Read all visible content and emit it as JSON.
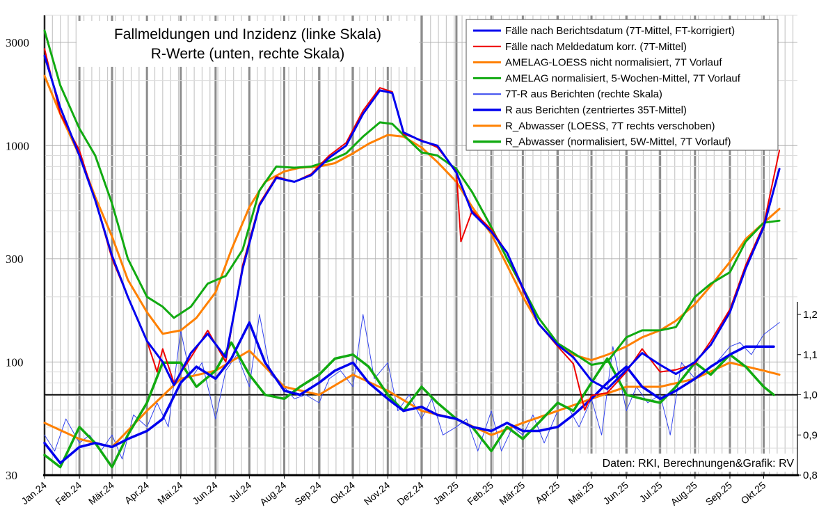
{
  "chart_data": {
    "type": "line",
    "title": [
      "Fallmeldungen und Inzidenz (linke Skala)",
      "R-Werte (unten, rechte Skala)"
    ],
    "credit": "Daten: RKI, Berechnungen&Grafik: RV",
    "x_range": [
      "2024-01-01",
      "2025-10-31"
    ],
    "x_tick_labels": [
      "Jan.24",
      "Feb.24",
      "Mär.24",
      "Apr.24",
      "Mai.24",
      "Jun.24",
      "Jul.24",
      "Aug.24",
      "Sep.24",
      "Okt.24",
      "Nov.24",
      "Dez.24",
      "Jan.25",
      "Feb.25",
      "Mär.25",
      "Apr.25",
      "Mai.25",
      "Jun.25",
      "Jul.25",
      "Aug.25",
      "Sep.25",
      "Okt.25"
    ],
    "x_tick_dates": [
      "2024-01-01",
      "2024-02-01",
      "2024-03-01",
      "2024-04-01",
      "2024-05-01",
      "2024-06-01",
      "2024-07-01",
      "2024-08-01",
      "2024-09-01",
      "2024-10-01",
      "2024-11-01",
      "2024-12-01",
      "2025-01-01",
      "2025-02-01",
      "2025-03-01",
      "2025-04-01",
      "2025-05-01",
      "2025-06-01",
      "2025-07-01",
      "2025-08-01",
      "2025-09-01",
      "2025-10-01"
    ],
    "y_left": {
      "scale": "log",
      "range": [
        30,
        4000
      ],
      "tick_labels": [
        "30",
        "100",
        "300",
        "1000",
        "3000"
      ],
      "tick_values": [
        30,
        100,
        300,
        1000,
        3000
      ]
    },
    "y_right": {
      "scale": "linear",
      "range": [
        0.8,
        1.2
      ],
      "tick_labels": [
        "0,8",
        "0,9",
        "1,0",
        "1,1",
        "1,2"
      ],
      "tick_values": [
        0.8,
        0.9,
        1.0,
        1.1,
        1.2
      ]
    },
    "reference_lines": [
      {
        "axis": "right",
        "value": 1.0,
        "color": "#000000"
      }
    ],
    "grid": true,
    "legend_position": "top-right",
    "series": [
      {
        "name": "Fälle nach Berichtsdatum (7T-Mittel, FT-korrigiert)",
        "axis": "left",
        "color": "#0000ee",
        "width": 3,
        "x": [
          "2024-01-01",
          "2024-01-15",
          "2024-02-01",
          "2024-02-15",
          "2024-03-01",
          "2024-03-15",
          "2024-04-01",
          "2024-04-15",
          "2024-04-25",
          "2024-05-10",
          "2024-05-25",
          "2024-06-10",
          "2024-06-25",
          "2024-07-10",
          "2024-07-25",
          "2024-08-10",
          "2024-08-25",
          "2024-09-10",
          "2024-09-25",
          "2024-10-10",
          "2024-10-25",
          "2024-11-05",
          "2024-11-15",
          "2024-12-01",
          "2024-12-15",
          "2025-01-01",
          "2025-01-15",
          "2025-02-01",
          "2025-02-15",
          "2025-03-01",
          "2025-03-15",
          "2025-04-01",
          "2025-04-15",
          "2025-05-01",
          "2025-05-15",
          "2025-06-01",
          "2025-06-15",
          "2025-07-01",
          "2025-07-15",
          "2025-08-01",
          "2025-08-15",
          "2025-09-01",
          "2025-09-15",
          "2025-10-01",
          "2025-10-15"
        ],
        "values": [
          2600,
          1500,
          900,
          560,
          310,
          200,
          125,
          100,
          78,
          110,
          135,
          105,
          270,
          530,
          710,
          680,
          730,
          880,
          1000,
          1400,
          1800,
          1750,
          1150,
          1050,
          1000,
          750,
          490,
          400,
          320,
          220,
          150,
          120,
          105,
          82,
          75,
          92,
          110,
          97,
          88,
          100,
          120,
          170,
          270,
          420,
          780
        ]
      },
      {
        "name": "Fälle nach Meldedatum korr. (7T-Mittel)",
        "axis": "left",
        "color": "#ee0000",
        "width": 2,
        "x": [
          "2024-01-01",
          "2024-01-15",
          "2024-02-01",
          "2024-02-15",
          "2024-03-01",
          "2024-03-15",
          "2024-04-01",
          "2024-04-10",
          "2024-04-15",
          "2024-04-25",
          "2024-05-10",
          "2024-05-25",
          "2024-06-10",
          "2024-06-25",
          "2024-07-10",
          "2024-07-25",
          "2024-08-10",
          "2024-08-25",
          "2024-09-10",
          "2024-09-25",
          "2024-10-10",
          "2024-10-25",
          "2024-11-05",
          "2024-11-15",
          "2024-12-01",
          "2024-12-15",
          "2025-01-01",
          "2025-01-05",
          "2025-01-15",
          "2025-02-01",
          "2025-02-15",
          "2025-03-01",
          "2025-03-15",
          "2025-04-01",
          "2025-04-15",
          "2025-04-25",
          "2025-05-01",
          "2025-05-15",
          "2025-06-01",
          "2025-06-15",
          "2025-07-01",
          "2025-07-15",
          "2025-08-01",
          "2025-08-15",
          "2025-09-01",
          "2025-09-15",
          "2025-10-01",
          "2025-10-15"
        ],
        "values": [
          2800,
          1400,
          950,
          560,
          300,
          200,
          125,
          90,
          115,
          80,
          105,
          140,
          100,
          280,
          540,
          720,
          680,
          740,
          900,
          1030,
          1450,
          1850,
          1770,
          1130,
          1060,
          980,
          760,
          360,
          500,
          410,
          320,
          215,
          150,
          118,
          98,
          60,
          70,
          72,
          90,
          115,
          90,
          92,
          98,
          125,
          175,
          280,
          430,
          950
        ]
      },
      {
        "name": "AMELAG-LOESS nicht normalisiert, 7T Vorlauf",
        "axis": "left",
        "color": "#ff8000",
        "width": 3,
        "x": [
          "2024-01-01",
          "2024-01-15",
          "2024-02-01",
          "2024-02-15",
          "2024-03-01",
          "2024-03-15",
          "2024-04-01",
          "2024-04-15",
          "2024-05-01",
          "2024-05-15",
          "2024-06-01",
          "2024-06-15",
          "2024-07-01",
          "2024-07-15",
          "2024-08-01",
          "2024-08-15",
          "2024-09-01",
          "2024-09-15",
          "2024-10-01",
          "2024-10-15",
          "2024-11-01",
          "2024-11-15",
          "2024-12-01",
          "2024-12-15",
          "2025-01-01",
          "2025-01-15",
          "2025-02-01",
          "2025-02-15",
          "2025-03-01",
          "2025-03-15",
          "2025-04-01",
          "2025-04-15",
          "2025-05-01",
          "2025-05-15",
          "2025-06-01",
          "2025-06-15",
          "2025-07-01",
          "2025-07-15",
          "2025-08-01",
          "2025-08-15",
          "2025-09-01",
          "2025-09-15",
          "2025-10-01",
          "2025-10-15"
        ],
        "values": [
          2100,
          1400,
          900,
          580,
          380,
          240,
          170,
          135,
          140,
          160,
          210,
          330,
          520,
          680,
          760,
          790,
          800,
          830,
          920,
          1020,
          1120,
          1100,
          980,
          840,
          680,
          520,
          390,
          280,
          200,
          150,
          120,
          108,
          102,
          108,
          118,
          130,
          140,
          155,
          185,
          225,
          290,
          370,
          440,
          510
        ]
      },
      {
        "name": "AMELAG normalisiert, 5-Wochen-Mittel, 7T Vorlauf",
        "axis": "left",
        "color": "#11aa11",
        "width": 3,
        "x": [
          "2024-01-01",
          "2024-01-15",
          "2024-02-01",
          "2024-02-15",
          "2024-03-01",
          "2024-03-15",
          "2024-04-01",
          "2024-04-15",
          "2024-04-25",
          "2024-05-10",
          "2024-05-25",
          "2024-06-10",
          "2024-06-25",
          "2024-07-10",
          "2024-07-25",
          "2024-08-10",
          "2024-08-25",
          "2024-09-10",
          "2024-09-25",
          "2024-10-10",
          "2024-10-25",
          "2024-11-05",
          "2024-11-15",
          "2024-12-01",
          "2024-12-15",
          "2025-01-01",
          "2025-01-15",
          "2025-02-01",
          "2025-02-15",
          "2025-03-01",
          "2025-03-15",
          "2025-04-01",
          "2025-04-15",
          "2025-05-01",
          "2025-05-15",
          "2025-06-01",
          "2025-06-15",
          "2025-07-01",
          "2025-07-15",
          "2025-08-01",
          "2025-08-15",
          "2025-09-01",
          "2025-09-15",
          "2025-10-01",
          "2025-10-15"
        ],
        "values": [
          3400,
          1900,
          1200,
          900,
          540,
          300,
          200,
          180,
          160,
          180,
          230,
          250,
          330,
          620,
          800,
          790,
          800,
          850,
          920,
          1100,
          1280,
          1260,
          1120,
          930,
          900,
          780,
          610,
          420,
          300,
          220,
          160,
          122,
          110,
          97,
          100,
          130,
          140,
          140,
          145,
          200,
          230,
          260,
          360,
          440,
          450
        ]
      },
      {
        "name": "7T-R aus Berichten (rechte Skala)",
        "axis": "right",
        "color": "#3344ee",
        "width": 1,
        "x": [
          "2024-01-01",
          "2024-01-10",
          "2024-01-20",
          "2024-02-01",
          "2024-02-10",
          "2024-02-20",
          "2024-03-01",
          "2024-03-10",
          "2024-03-20",
          "2024-04-01",
          "2024-04-10",
          "2024-04-20",
          "2024-05-01",
          "2024-05-10",
          "2024-05-20",
          "2024-06-01",
          "2024-06-10",
          "2024-06-20",
          "2024-07-01",
          "2024-07-10",
          "2024-07-20",
          "2024-08-01",
          "2024-08-10",
          "2024-08-20",
          "2024-09-01",
          "2024-09-10",
          "2024-09-20",
          "2024-10-01",
          "2024-10-10",
          "2024-10-20",
          "2024-11-01",
          "2024-11-10",
          "2024-11-20",
          "2024-12-01",
          "2024-12-10",
          "2024-12-20",
          "2025-01-01",
          "2025-01-10",
          "2025-01-20",
          "2025-02-01",
          "2025-02-10",
          "2025-02-20",
          "2025-03-01",
          "2025-03-10",
          "2025-03-20",
          "2025-04-01",
          "2025-04-10",
          "2025-04-20",
          "2025-05-01",
          "2025-05-10",
          "2025-05-20",
          "2025-06-01",
          "2025-06-10",
          "2025-06-20",
          "2025-07-01",
          "2025-07-10",
          "2025-07-20",
          "2025-08-01",
          "2025-08-10",
          "2025-08-20",
          "2025-09-01",
          "2025-09-10",
          "2025-09-20",
          "2025-10-01",
          "2025-10-15"
        ],
        "values": [
          0.9,
          0.86,
          0.94,
          0.88,
          0.9,
          0.86,
          0.9,
          0.84,
          0.95,
          0.92,
          0.98,
          0.92,
          1.16,
          1.04,
          1.08,
          0.94,
          1.06,
          1.1,
          1.02,
          1.2,
          1.05,
          1.02,
          0.99,
          1.0,
          0.98,
          1.04,
          1.06,
          1.02,
          1.2,
          1.04,
          1.08,
          0.96,
          1.0,
          0.94,
          0.99,
          0.9,
          0.92,
          0.94,
          0.86,
          0.96,
          0.86,
          0.92,
          0.9,
          0.95,
          0.88,
          0.96,
          0.97,
          0.92,
          0.99,
          0.9,
          1.12,
          0.96,
          1.02,
          0.98,
          1.0,
          0.9,
          1.08,
          1.04,
          1.06,
          1.08,
          1.12,
          1.13,
          1.1,
          1.15,
          1.18
        ]
      },
      {
        "name": "R aus Berichten (zentriertes 35T-Mittel)",
        "axis": "right",
        "color": "#0000ee",
        "width": 3.5,
        "x": [
          "2024-01-01",
          "2024-01-15",
          "2024-02-01",
          "2024-02-15",
          "2024-03-01",
          "2024-03-15",
          "2024-04-01",
          "2024-04-15",
          "2024-05-01",
          "2024-05-15",
          "2024-06-01",
          "2024-06-15",
          "2024-07-01",
          "2024-07-15",
          "2024-08-01",
          "2024-08-15",
          "2024-09-01",
          "2024-09-15",
          "2024-10-01",
          "2024-10-15",
          "2024-11-01",
          "2024-11-15",
          "2024-12-01",
          "2024-12-15",
          "2025-01-01",
          "2025-01-15",
          "2025-02-01",
          "2025-02-15",
          "2025-03-01",
          "2025-03-15",
          "2025-04-01",
          "2025-04-15",
          "2025-05-01",
          "2025-05-15",
          "2025-06-01",
          "2025-06-15",
          "2025-07-01",
          "2025-07-15",
          "2025-08-01",
          "2025-08-15",
          "2025-09-01",
          "2025-09-15",
          "2025-10-01",
          "2025-10-10"
        ],
        "values": [
          0.88,
          0.83,
          0.87,
          0.88,
          0.87,
          0.89,
          0.91,
          0.94,
          1.03,
          1.07,
          1.04,
          1.09,
          1.18,
          1.08,
          1.01,
          1.0,
          1.03,
          1.06,
          1.08,
          1.03,
          0.99,
          0.96,
          0.97,
          0.95,
          0.94,
          0.92,
          0.91,
          0.93,
          0.91,
          0.91,
          0.92,
          0.95,
          0.99,
          1.03,
          1.07,
          1.02,
          0.99,
          1.01,
          1.04,
          1.07,
          1.1,
          1.12,
          1.12,
          1.12
        ]
      },
      {
        "name": "R_Abwasser (LOESS, 7T rechts verschoben)",
        "axis": "right",
        "color": "#ff8000",
        "width": 3,
        "x": [
          "2024-01-01",
          "2024-02-01",
          "2024-03-01",
          "2024-04-01",
          "2024-05-01",
          "2024-06-01",
          "2024-07-01",
          "2024-08-01",
          "2024-09-01",
          "2024-10-01",
          "2024-11-01",
          "2024-12-01",
          "2025-01-01",
          "2025-02-01",
          "2025-03-01",
          "2025-04-01",
          "2025-05-01",
          "2025-06-01",
          "2025-07-01",
          "2025-08-01",
          "2025-09-01",
          "2025-10-01",
          "2025-10-15"
        ],
        "values": [
          0.93,
          0.89,
          0.87,
          0.96,
          1.04,
          1.06,
          1.11,
          1.02,
          1.0,
          1.05,
          1.01,
          0.96,
          0.94,
          0.9,
          0.93,
          0.96,
          0.99,
          1.02,
          1.02,
          1.04,
          1.08,
          1.06,
          1.05
        ]
      },
      {
        "name": "R_Abwasser (normalisiert, 5W-Mittel, 7T Vorlauf)",
        "axis": "right",
        "color": "#11aa11",
        "width": 3.5,
        "x": [
          "2024-01-01",
          "2024-01-15",
          "2024-02-01",
          "2024-02-15",
          "2024-03-01",
          "2024-03-15",
          "2024-04-01",
          "2024-04-15",
          "2024-05-01",
          "2024-05-15",
          "2024-06-01",
          "2024-06-15",
          "2024-07-01",
          "2024-07-15",
          "2024-08-01",
          "2024-08-15",
          "2024-09-01",
          "2024-09-15",
          "2024-10-01",
          "2024-10-15",
          "2024-11-01",
          "2024-11-15",
          "2024-12-01",
          "2024-12-15",
          "2025-01-01",
          "2025-01-15",
          "2025-02-01",
          "2025-02-15",
          "2025-03-01",
          "2025-03-15",
          "2025-04-01",
          "2025-04-15",
          "2025-05-01",
          "2025-05-15",
          "2025-06-01",
          "2025-06-15",
          "2025-07-01",
          "2025-07-15",
          "2025-08-01",
          "2025-08-15",
          "2025-09-01",
          "2025-09-15",
          "2025-10-01",
          "2025-10-10"
        ],
        "values": [
          0.85,
          0.82,
          0.92,
          0.88,
          0.82,
          0.9,
          0.98,
          1.08,
          1.08,
          1.02,
          1.06,
          1.13,
          1.05,
          1.0,
          0.99,
          1.02,
          1.05,
          1.09,
          1.1,
          1.07,
          1.0,
          0.96,
          1.02,
          0.98,
          0.94,
          0.92,
          0.86,
          0.92,
          0.89,
          0.93,
          0.98,
          0.96,
          1.03,
          1.09,
          1.0,
          0.99,
          0.98,
          1.02,
          1.08,
          1.05,
          1.1,
          1.07,
          1.02,
          1.0
        ]
      }
    ]
  }
}
